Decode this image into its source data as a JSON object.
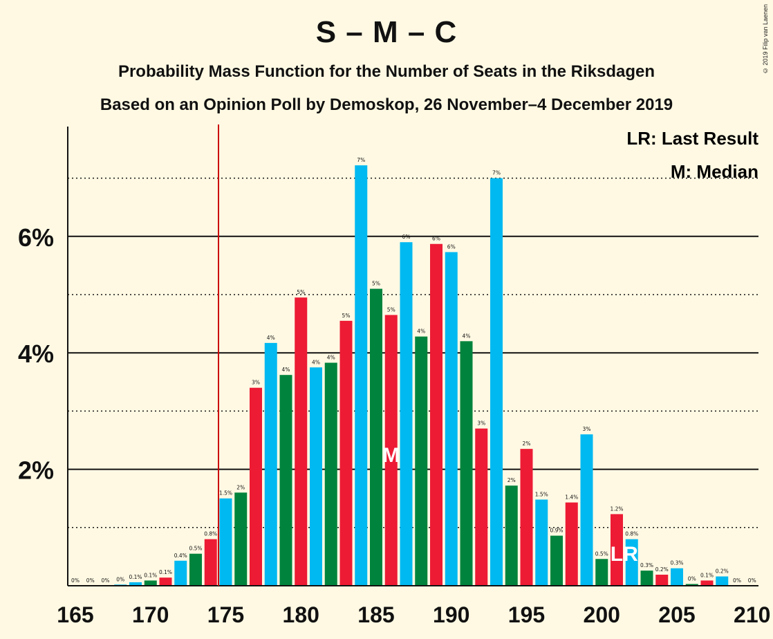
{
  "title": "S – M – C",
  "subtitle_1": "Probability Mass Function for the Number of Seats in the Riksdagen",
  "subtitle_2": "Based on an Opinion Poll by Demoskop, 26 November–4 December 2019",
  "copyright": "© 2019 Filip van Laenen",
  "legend": {
    "lr": "LR: Last Result",
    "m": "M: Median"
  },
  "markers": {
    "median_label": "M",
    "last_result_label": "LR"
  },
  "colors": {
    "S": "#ed1b34",
    "M": "#00b9f1",
    "C": "#00843d",
    "last_result_line": "#cc0000",
    "background": "#fff9e3"
  },
  "chart_data": {
    "type": "bar",
    "x": [
      165,
      166,
      167,
      168,
      169,
      170,
      171,
      172,
      173,
      174,
      175,
      176,
      177,
      178,
      179,
      180,
      181,
      182,
      183,
      184,
      185,
      186,
      187,
      188,
      189,
      190,
      191,
      192,
      193,
      194,
      195,
      196,
      197,
      198,
      199,
      200,
      201,
      202,
      203,
      204,
      205,
      206,
      207,
      208,
      209,
      210
    ],
    "values": [
      0,
      0,
      0,
      0.02,
      0.06,
      0.09,
      0.14,
      0.43,
      0.55,
      0.8,
      1.5,
      1.6,
      3.4,
      4.17,
      3.62,
      4.95,
      3.75,
      3.83,
      4.55,
      7.22,
      5.1,
      4.65,
      5.9,
      4.28,
      5.87,
      5.73,
      4.2,
      2.7,
      7.0,
      1.72,
      2.35,
      1.48,
      0.86,
      1.43,
      2.6,
      0.46,
      1.23,
      0.8,
      0.26,
      0.19,
      0.3,
      0.03,
      0.09,
      0.16,
      0.0,
      0.0
    ],
    "labels": [
      "0%",
      "0%",
      "0%",
      "0%",
      "0.1%",
      "0.1%",
      "0.1%",
      "0.4%",
      "0.5%",
      "0.8%",
      "1.5%",
      "2%",
      "3%",
      "4%",
      "4%",
      "5%",
      "4%",
      "4%",
      "5%",
      "7%",
      "5%",
      "5%",
      "6%",
      "4%",
      "6%",
      "6%",
      "4%",
      "3%",
      "7%",
      "2%",
      "2%",
      "1.5%",
      "0.9%",
      "1.4%",
      "3%",
      "0.5%",
      "1.2%",
      "0.8%",
      "0.3%",
      "0.2%",
      "0.3%",
      "0%",
      "0.1%",
      "0.2%",
      "0%",
      "0%"
    ],
    "bar_colors": [
      "M",
      "C",
      "S",
      "M",
      "M",
      "C",
      "S",
      "M",
      "C",
      "S",
      "M",
      "C",
      "S",
      "M",
      "C",
      "S",
      "M",
      "C",
      "S",
      "M",
      "C",
      "S",
      "M",
      "C",
      "S",
      "M",
      "C",
      "S",
      "M",
      "C",
      "S",
      "M",
      "C",
      "S",
      "M",
      "C",
      "S",
      "M",
      "C",
      "S",
      "M",
      "C",
      "S",
      "M",
      "C",
      "S"
    ],
    "xticks": [
      165,
      170,
      175,
      180,
      185,
      190,
      195,
      200,
      205,
      210
    ],
    "yticks": [
      {
        "value": 2,
        "label": "2%"
      },
      {
        "value": 4,
        "label": "4%"
      },
      {
        "value": 6,
        "label": "6%"
      }
    ],
    "ylim": [
      0,
      7.8
    ],
    "grid": "solid at even %, dotted at odd %",
    "last_result": 175,
    "median": 186,
    "lr_bar": 202,
    "legend_position": "top-right"
  }
}
